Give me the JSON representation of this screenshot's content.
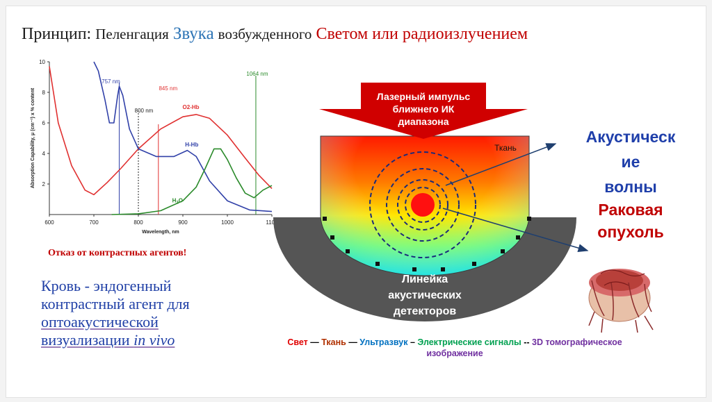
{
  "title": {
    "lead": "Принцип:",
    "p1": "Пеленгация",
    "p2": "Звука",
    "p3": "возбужденного",
    "p4": "Светом или радиоизлучением"
  },
  "chart_data": {
    "type": "line",
    "ylabel": "Absorption Capability, μ (cm⁻¹) x % content",
    "xlabel": "Wavelength, nm",
    "xlim": [
      600,
      1100
    ],
    "ylim": [
      0,
      10
    ],
    "x_ticks": [
      "600",
      "700",
      "800",
      "900",
      "1000",
      "1100"
    ],
    "y_ticks": [
      "2",
      "4",
      "6",
      "8",
      "10"
    ],
    "series": [
      {
        "name": "O2-Hb",
        "color": "#e03030",
        "x": [
          600,
          620,
          650,
          680,
          700,
          730,
          760,
          800,
          850,
          900,
          930,
          960,
          1000,
          1040,
          1070,
          1100
        ],
        "y": [
          9.7,
          6.0,
          3.2,
          1.6,
          1.3,
          2.1,
          3.0,
          4.3,
          5.6,
          6.4,
          6.55,
          6.3,
          5.2,
          3.7,
          2.6,
          1.7
        ]
      },
      {
        "name": "H-Hb",
        "color": "#3040a8",
        "x": [
          700,
          710,
          725,
          735,
          745,
          753,
          757,
          765,
          780,
          800,
          840,
          880,
          910,
          930,
          960,
          1000,
          1050,
          1100
        ],
        "y": [
          10,
          9.4,
          7.5,
          6.0,
          6.0,
          7.7,
          8.4,
          7.8,
          5.6,
          4.3,
          3.8,
          3.8,
          4.2,
          3.8,
          2.2,
          0.9,
          0.3,
          0.2
        ]
      },
      {
        "name": "H2O",
        "color": "#2a8a2a",
        "x": [
          740,
          800,
          850,
          900,
          930,
          950,
          970,
          985,
          1000,
          1020,
          1040,
          1060,
          1080,
          1100
        ],
        "y": [
          0,
          0.05,
          0.25,
          0.9,
          1.8,
          3.0,
          4.3,
          4.3,
          3.6,
          2.4,
          1.4,
          1.1,
          1.6,
          1.9
        ]
      }
    ],
    "markers": [
      {
        "x": 757,
        "label": "757 nm",
        "color": "#3040a8"
      },
      {
        "x": 800,
        "label": "800 nm",
        "color": "#222222"
      },
      {
        "x": 845,
        "label": "845 nm",
        "color": "#e03030"
      },
      {
        "x": 1064,
        "label": "1064 nm",
        "color": "#2a8a2a"
      }
    ],
    "curve_labels": {
      "o2hb": "O2-Hb",
      "hhb": "H-Hb",
      "h2o": "H",
      "h2o_sub": "2",
      "h2o_end": "O"
    }
  },
  "refusal": "Отказ от контрастных агентов!",
  "blood": {
    "line1": "Кровь - эндогенный",
    "line2": "контрастный агент для",
    "line3": "оптоакустической",
    "line4_a": "визуализации ",
    "line4_b": "in vivo"
  },
  "diagram": {
    "laser": [
      "Лазерный импульс",
      "ближнего ИК",
      "диапазона"
    ],
    "tissue": "Ткань",
    "detectors": [
      "Линейка",
      "акустических",
      "детекторов"
    ]
  },
  "waves_label": [
    "Акустическ",
    "ие",
    "волны"
  ],
  "tumor_label": [
    "Раковая",
    "опухоль"
  ],
  "caption": {
    "svet": "Свет",
    "dash1": " — ",
    "tkan": "Ткань",
    "dash2": " — ",
    "uz": "Ультразвук",
    "dash3": " – ",
    "signals": "Электрические сигналы",
    "dash4": " -- ",
    "three_d": "3D томографическое",
    "image": "изображение"
  },
  "colors": {
    "title_blue": "#2e75b6",
    "title_red": "#c00000",
    "waves_blue": "#1f3faa",
    "tumor_red": "#c00000",
    "arrow_red": "#d00000"
  }
}
